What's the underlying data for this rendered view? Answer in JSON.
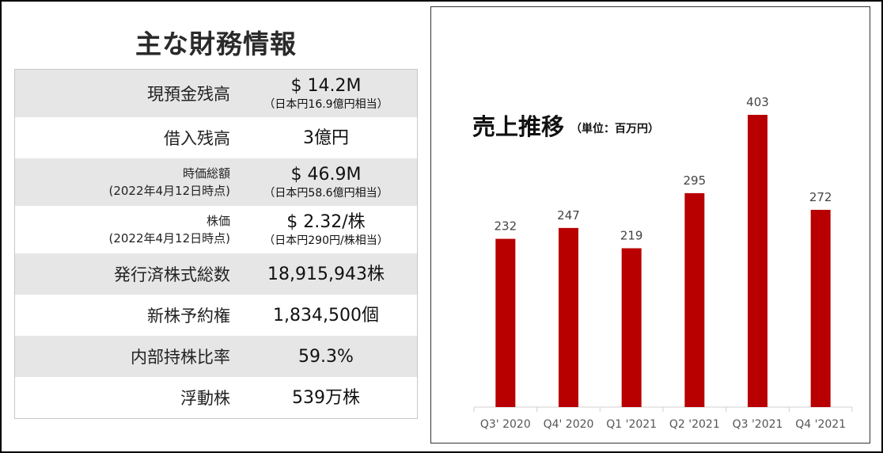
{
  "left": {
    "title": "主な財務情報",
    "rows": [
      {
        "label": "現預金残高",
        "value": "$ 14.2M",
        "value_sub": "（日本円16.9億円相当）",
        "shaded": true
      },
      {
        "label": "借入残高",
        "value": "3億円",
        "shaded": false
      },
      {
        "label": "時価総額",
        "label_sub": "(2022年4月12日時点)",
        "value": "$ 46.9M",
        "value_sub": "（日本円58.6億円相当）",
        "shaded": true
      },
      {
        "label": "株価",
        "label_sub": "(2022年4月12日時点)",
        "value": "$ 2.32/株",
        "value_sub": "（日本円290円/株相当）",
        "shaded": false
      },
      {
        "label": "発行済株式総数",
        "value": "18,915,943株",
        "shaded": true
      },
      {
        "label": "新株予約権",
        "value": "1,834,500個",
        "shaded": false
      },
      {
        "label": "内部持株比率",
        "value": "59.3%",
        "shaded": true
      },
      {
        "label": "浮動株",
        "value": "539万株",
        "shaded": false
      }
    ]
  },
  "chart_data": {
    "type": "bar",
    "title": "売上推移",
    "unit_note": "（単位：百万円）",
    "categories": [
      "Q3' 2020",
      "Q4' 2020",
      "Q1 '2021",
      "Q2 '2021",
      "Q3 '2021",
      "Q4 '2021"
    ],
    "values": [
      232,
      247,
      219,
      295,
      403,
      272
    ],
    "ylim": [
      0,
      403
    ],
    "grid": false,
    "legend": "none",
    "bar_color": "#b80000"
  }
}
